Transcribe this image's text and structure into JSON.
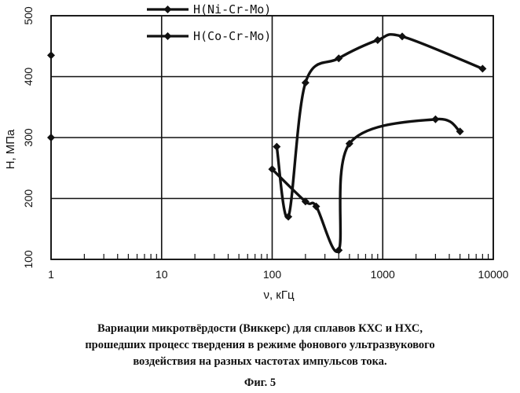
{
  "chart_data": {
    "type": "line",
    "xscale": "log",
    "xlim": [
      1,
      10000
    ],
    "ylim": [
      100,
      500
    ],
    "x_ticks": [
      "1",
      "10",
      "100",
      "1000",
      "10000"
    ],
    "y_ticks": [
      "100",
      "200",
      "300",
      "400",
      "500"
    ],
    "xlabel": "ν, кГц",
    "ylabel": "H, МПа",
    "grid": true,
    "legend_position": "top-center",
    "series": [
      {
        "name": "H(Ni-Cr-Mo)",
        "color": "#111111",
        "x": [
          1,
          100,
          200,
          250,
          400,
          500,
          3000,
          5000
        ],
        "y": [
          300,
          248,
          195,
          187,
          115,
          290,
          330,
          310
        ]
      },
      {
        "name": "H(Co-Cr-Mo)",
        "color": "#111111",
        "x": [
          1,
          110,
          140,
          200,
          400,
          900,
          1500,
          8000
        ],
        "y": [
          435,
          285,
          170,
          390,
          430,
          460,
          466,
          413
        ]
      }
    ]
  },
  "caption": {
    "line1": "Вариации микротвёрдости (Виккерс) для сплавов КХС и НХС,",
    "line2": "прошедших процесс твердения  в режиме фонового ультразвукового",
    "line3": "воздействия на разных частотах импульсов тока.",
    "figure_label": "Фиг. 5"
  }
}
